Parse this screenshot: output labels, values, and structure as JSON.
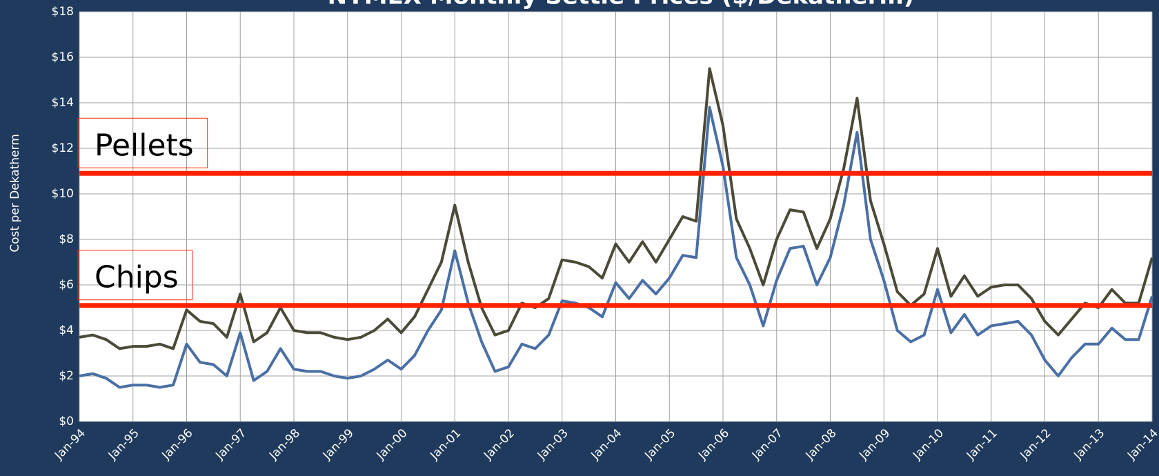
{
  "chart_data": {
    "type": "line",
    "title": "NYMEX Monthly Settle Prices ($/Dekatherm)",
    "y_label": "Cost per Dekatherm",
    "categories": [
      "Jan-94",
      null,
      null,
      null,
      "Jan-95",
      null,
      null,
      null,
      "Jan-96",
      null,
      null,
      null,
      "Jan-97",
      null,
      null,
      null,
      "Jan-98",
      null,
      null,
      null,
      "Jan-99",
      null,
      null,
      null,
      "Jan-00",
      null,
      null,
      null,
      "Jan-01",
      null,
      null,
      null,
      "Jan-02",
      null,
      null,
      null,
      "Jan-03",
      null,
      null,
      null,
      "Jan-04",
      null,
      null,
      null,
      "Jan-05",
      null,
      null,
      null,
      "Jan-06",
      null,
      null,
      null,
      "Jan-07",
      null,
      null,
      null,
      "Jan-08",
      null,
      null,
      null,
      "Jan-09",
      null,
      null,
      null,
      "Jan-10",
      null,
      null,
      null,
      "Jan-11",
      null,
      null,
      null,
      "Jan-12",
      null,
      null,
      null,
      "Jan-13",
      null,
      null,
      null,
      "Jan-14"
    ],
    "series": [
      {
        "color": "#4b4a38",
        "values": [
          3.7,
          3.8,
          3.6,
          3.2,
          3.3,
          3.3,
          3.4,
          3.2,
          4.9,
          4.4,
          4.3,
          3.7,
          5.6,
          3.5,
          3.9,
          5.0,
          4.0,
          3.9,
          3.9,
          3.7,
          3.6,
          3.7,
          4.0,
          4.5,
          3.9,
          4.6,
          5.8,
          7.0,
          9.5,
          7.0,
          5.0,
          3.8,
          4.0,
          5.2,
          5.0,
          5.4,
          7.1,
          7.0,
          6.8,
          6.3,
          7.8,
          7.0,
          7.9,
          7.0,
          8.0,
          9.0,
          8.8,
          15.5,
          13.0,
          8.9,
          7.6,
          6.0,
          8.0,
          9.3,
          9.2,
          7.6,
          8.9,
          11.1,
          14.2,
          9.7,
          7.8,
          5.7,
          5.1,
          5.6,
          7.6,
          5.5,
          6.4,
          5.5,
          5.9,
          6.0,
          6.0,
          5.4,
          4.4,
          3.8,
          4.5,
          5.2,
          5.0,
          5.8,
          5.2,
          5.2,
          7.2
        ]
      },
      {
        "color": "#4a6fa5",
        "values": [
          2.0,
          2.1,
          1.9,
          1.5,
          1.6,
          1.6,
          1.5,
          1.6,
          3.4,
          2.6,
          2.5,
          2.0,
          3.9,
          1.8,
          2.2,
          3.2,
          2.3,
          2.2,
          2.2,
          2.0,
          1.9,
          2.0,
          2.3,
          2.7,
          2.3,
          2.9,
          4.0,
          4.9,
          7.5,
          5.2,
          3.5,
          2.2,
          2.4,
          3.4,
          3.2,
          3.8,
          5.3,
          5.2,
          5.0,
          4.6,
          6.1,
          5.4,
          6.2,
          5.6,
          6.3,
          7.3,
          7.2,
          13.8,
          11.2,
          7.2,
          6.0,
          4.2,
          6.2,
          7.6,
          7.7,
          6.0,
          7.2,
          9.5,
          12.7,
          8.0,
          6.2,
          4.0,
          3.5,
          3.8,
          5.8,
          3.9,
          4.7,
          3.8,
          4.2,
          4.3,
          4.4,
          3.8,
          2.7,
          2.0,
          2.8,
          3.4,
          3.4,
          4.1,
          3.6,
          3.6,
          5.5
        ]
      }
    ],
    "reference_lines": [
      {
        "label": "Pellets",
        "value": 10.9,
        "color": "#ff2200"
      },
      {
        "label": "Chips",
        "value": 5.1,
        "color": "#ff2200"
      }
    ],
    "ylim": [
      0,
      18
    ],
    "yticks": [
      {
        "value": 0,
        "label": "$0"
      },
      {
        "value": 2,
        "label": "$2"
      },
      {
        "value": 4,
        "label": "$4"
      },
      {
        "value": 6,
        "label": "$6"
      },
      {
        "value": 8,
        "label": "$8"
      },
      {
        "value": 10,
        "label": "$10"
      },
      {
        "value": 12,
        "label": "$12"
      },
      {
        "value": 14,
        "label": "$14"
      },
      {
        "value": 16,
        "label": "$16"
      },
      {
        "value": 18,
        "label": "$18"
      }
    ],
    "grid": true
  }
}
